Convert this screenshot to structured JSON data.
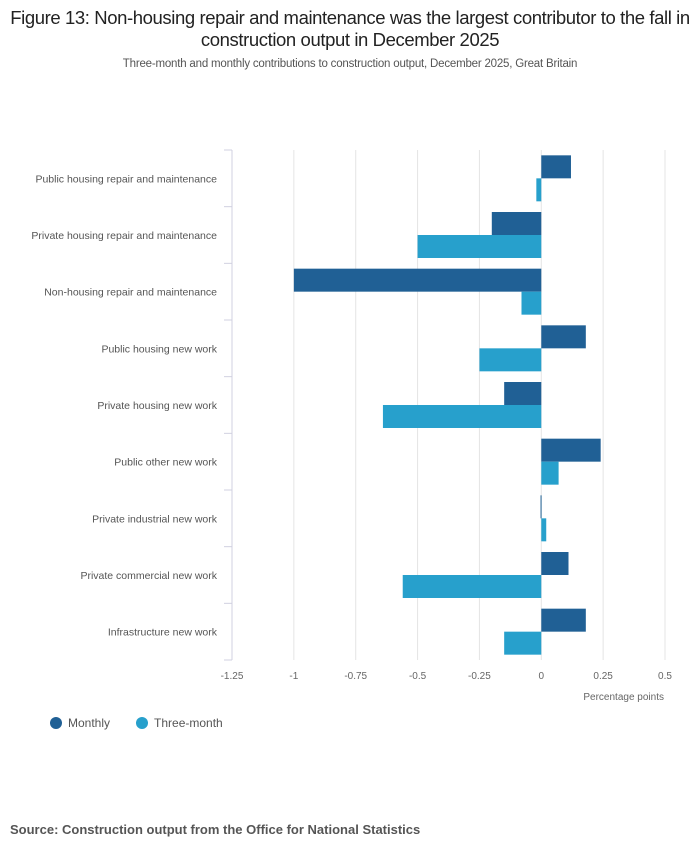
{
  "chart_data": {
    "type": "bar",
    "orientation": "horizontal",
    "title": "Figure 13: Non-housing repair and maintenance was the largest contributor to the fall in construction output in December 2025",
    "subtitle": "Three-month and monthly contributions to construction output, December 2025, Great Britain",
    "xlabel": "Percentage points",
    "xlim": [
      -1.25,
      0.5
    ],
    "xticks": [
      "-1.25",
      "-1",
      "-0.75",
      "-0.5",
      "-0.25",
      "0",
      "0.25",
      "0.5"
    ],
    "grid": true,
    "legend_position": "bottom-left",
    "categories": [
      "Public housing repair and maintenance",
      "Private housing repair and maintenance",
      "Non-housing repair and maintenance",
      "Public housing new work",
      "Private housing new work",
      "Public other new work",
      "Private industrial new work",
      "Private commercial new work",
      "Infrastructure new work"
    ],
    "series": [
      {
        "name": "Monthly",
        "color": "#206095",
        "values": [
          0.12,
          -0.2,
          -1.0,
          0.18,
          -0.15,
          0.24,
          -0.003,
          0.11,
          0.18
        ]
      },
      {
        "name": "Three-month",
        "color": "#27a0cc",
        "values": [
          -0.02,
          -0.5,
          -0.08,
          -0.25,
          -0.64,
          0.07,
          0.02,
          -0.56,
          -0.15
        ]
      }
    ]
  },
  "source": "Source: Construction output from the Office for National Statistics"
}
